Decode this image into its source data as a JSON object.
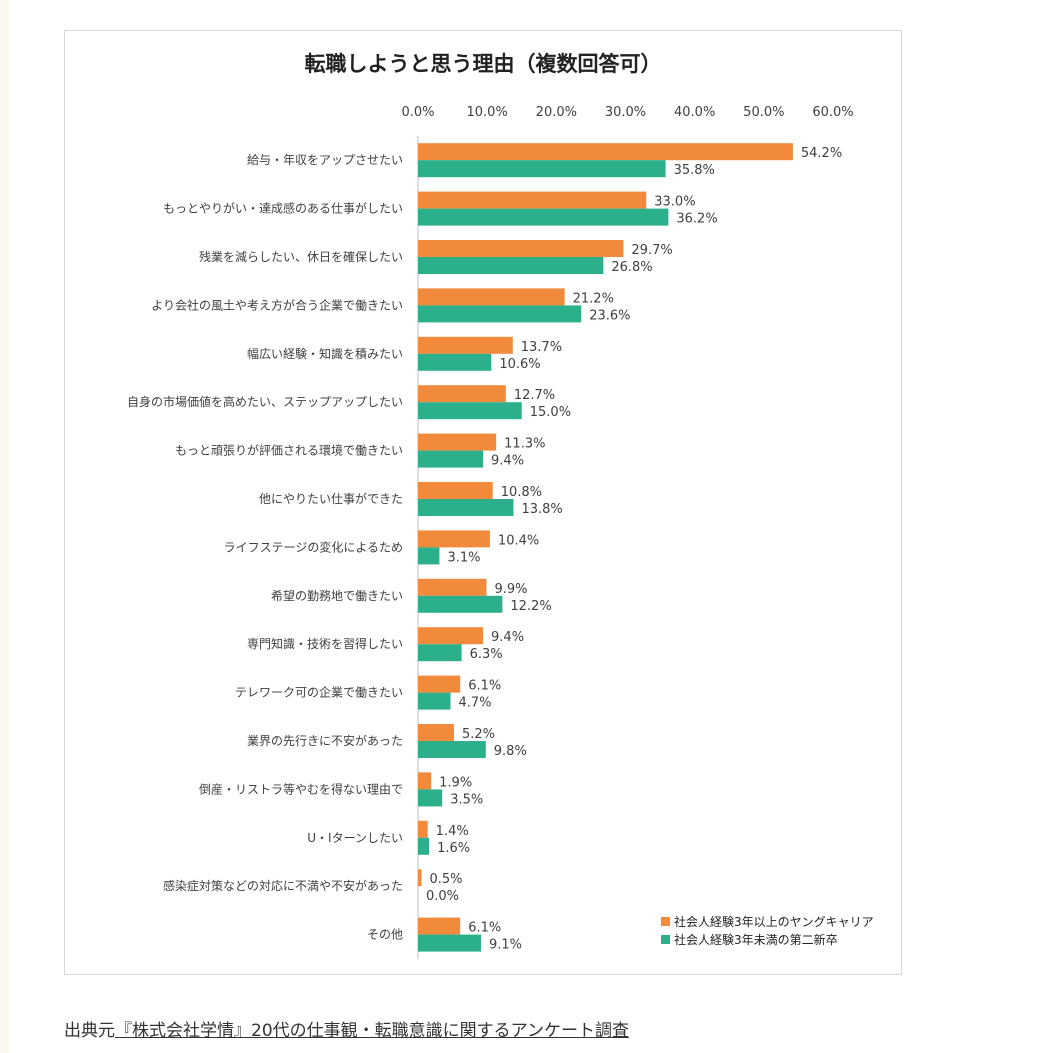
{
  "colors": {
    "series_a": "#f28a3c",
    "series_b": "#2bb08b",
    "axis": "#bfbfbf",
    "text": "#404040"
  },
  "chart_data": {
    "type": "bar",
    "orientation": "horizontal",
    "title": "転職しようと思う理由（複数回答可）",
    "xlim": [
      0,
      60
    ],
    "ticks": [
      "0.0%",
      "10.0%",
      "20.0%",
      "30.0%",
      "40.0%",
      "50.0%",
      "60.0%"
    ],
    "tick_values": [
      0,
      10,
      20,
      30,
      40,
      50,
      60
    ],
    "axis_position": "top",
    "legend_position": "bottom-right",
    "categories": [
      "給与・年収をアップさせたい",
      "もっとやりがい・達成感のある仕事がしたい",
      "残業を減らしたい、休日を確保したい",
      "より会社の風土や考え方が合う企業で働きたい",
      "幅広い経験・知識を積みたい",
      "自身の市場価値を高めたい、ステップアップしたい",
      "もっと頑張りが評価される環境で働きたい",
      "他にやりたい仕事ができた",
      "ライフステージの変化によるため",
      "希望の勤務地で働きたい",
      "専門知識・技術を習得したい",
      "テレワーク可の企業で働きたい",
      "業界の先行きに不安があった",
      "倒産・リストラ等やむを得ない理由で",
      "U・Iターンしたい",
      "感染症対策などの対応に不満や不安があった",
      "その他"
    ],
    "series": [
      {
        "name": "社会人経験3年以上のヤングキャリア",
        "color": "#f28a3c",
        "values": [
          54.2,
          33.0,
          29.7,
          21.2,
          13.7,
          12.7,
          11.3,
          10.8,
          10.4,
          9.9,
          9.4,
          6.1,
          5.2,
          1.9,
          1.4,
          0.5,
          6.1
        ],
        "labels": [
          "54.2%",
          "33.0%",
          "29.7%",
          "21.2%",
          "13.7%",
          "12.7%",
          "11.3%",
          "10.8%",
          "10.4%",
          "9.9%",
          "9.4%",
          "6.1%",
          "5.2%",
          "1.9%",
          "1.4%",
          "0.5%",
          "6.1%"
        ]
      },
      {
        "name": "社会人経験3年未満の第二新卒",
        "color": "#2bb08b",
        "values": [
          35.8,
          36.2,
          26.8,
          23.6,
          10.6,
          15.0,
          9.4,
          13.8,
          3.1,
          12.2,
          6.3,
          4.7,
          9.8,
          3.5,
          1.6,
          0.0,
          9.1
        ],
        "labels": [
          "35.8%",
          "36.2%",
          "26.8%",
          "23.6%",
          "10.6%",
          "15.0%",
          "9.4%",
          "13.8%",
          "3.1%",
          "12.2%",
          "6.3%",
          "4.7%",
          "9.8%",
          "3.5%",
          "1.6%",
          "0.0%",
          "9.1%"
        ]
      }
    ]
  },
  "source": {
    "prefix": "出典元",
    "link_text": "『株式会社学情』20代の仕事観・転職意識に関するアンケート調査"
  }
}
